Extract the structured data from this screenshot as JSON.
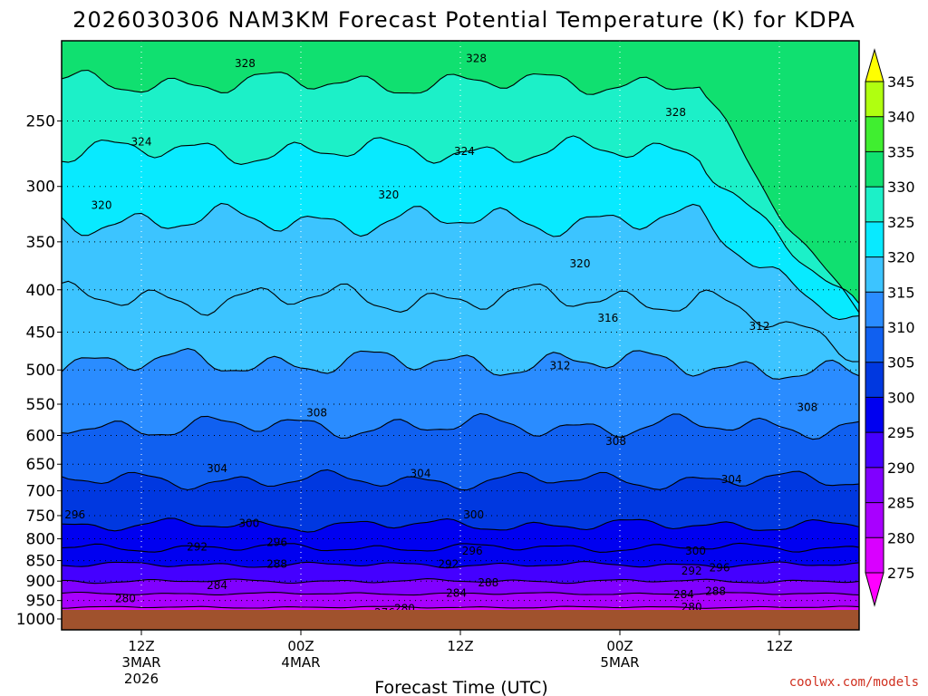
{
  "chart_data": {
    "type": "contour",
    "title": "2026030306 NAM3KM Forecast Potential Temperature (K) for KDPA",
    "xlabel": "Forecast Time (UTC)",
    "ylabel": "",
    "credit": "coolwx.com/models",
    "x_ticks": [
      {
        "hour": 6,
        "lines": [
          "12Z",
          "3MAR",
          "2026"
        ]
      },
      {
        "hour": 18,
        "lines": [
          "00Z",
          "4MAR"
        ]
      },
      {
        "hour": 30,
        "lines": [
          "12Z"
        ]
      },
      {
        "hour": 42,
        "lines": [
          "00Z",
          "5MAR"
        ]
      },
      {
        "hour": 54,
        "lines": [
          "12Z"
        ]
      }
    ],
    "x_range_hours": [
      0,
      60
    ],
    "y_ticks": [
      250,
      300,
      350,
      400,
      450,
      500,
      550,
      600,
      650,
      700,
      750,
      800,
      850,
      900,
      950,
      1000
    ],
    "y_range_hPa": [
      200,
      1000
    ],
    "y_scale": "log",
    "grid": true,
    "colorbar": {
      "ticks": [
        275,
        280,
        285,
        290,
        295,
        300,
        305,
        310,
        315,
        320,
        325,
        330,
        335,
        340,
        345
      ],
      "colors": [
        "#ff00ff",
        "#d900ff",
        "#a800ff",
        "#8000ff",
        "#4400ff",
        "#0000f0",
        "#0038e0",
        "#1060f0",
        "#2a8cff",
        "#3cc4ff",
        "#08eaff",
        "#1cf0c8",
        "#10e070",
        "#40ee30",
        "#b0ff10",
        "#ffff00"
      ]
    },
    "contour_labels": [
      {
        "text": "328",
        "hour": 13.8,
        "p": 213
      },
      {
        "text": "328",
        "hour": 31.2,
        "p": 210
      },
      {
        "text": "328",
        "hour": 46.2,
        "p": 244
      },
      {
        "text": "324",
        "hour": 6.0,
        "p": 265
      },
      {
        "text": "324",
        "hour": 30.3,
        "p": 272
      },
      {
        "text": "320",
        "hour": 3.0,
        "p": 316
      },
      {
        "text": "320",
        "hour": 24.6,
        "p": 307
      },
      {
        "text": "320",
        "hour": 39.0,
        "p": 372
      },
      {
        "text": "316",
        "hour": 41.1,
        "p": 433
      },
      {
        "text": "312",
        "hour": 52.5,
        "p": 443
      },
      {
        "text": "312",
        "hour": 37.5,
        "p": 494
      },
      {
        "text": "308",
        "hour": 19.2,
        "p": 563
      },
      {
        "text": "308",
        "hour": 41.7,
        "p": 610
      },
      {
        "text": "308",
        "hour": 56.1,
        "p": 555
      },
      {
        "text": "304",
        "hour": 11.7,
        "p": 658
      },
      {
        "text": "304",
        "hour": 27.0,
        "p": 667
      },
      {
        "text": "304",
        "hour": 50.4,
        "p": 678
      },
      {
        "text": "300",
        "hour": 14.1,
        "p": 766
      },
      {
        "text": "300",
        "hour": 31.0,
        "p": 748
      },
      {
        "text": "300",
        "hour": 47.7,
        "p": 828
      },
      {
        "text": "296",
        "hour": 1.0,
        "p": 748
      },
      {
        "text": "296",
        "hour": 16.2,
        "p": 808
      },
      {
        "text": "296",
        "hour": 30.9,
        "p": 828
      },
      {
        "text": "296",
        "hour": 49.5,
        "p": 867
      },
      {
        "text": "292",
        "hour": 10.2,
        "p": 818
      },
      {
        "text": "292",
        "hour": 29.1,
        "p": 858
      },
      {
        "text": "292",
        "hour": 47.4,
        "p": 875
      },
      {
        "text": "288",
        "hour": 16.2,
        "p": 858
      },
      {
        "text": "288",
        "hour": 32.1,
        "p": 904
      },
      {
        "text": "288",
        "hour": 49.2,
        "p": 926
      },
      {
        "text": "284",
        "hour": 11.7,
        "p": 911
      },
      {
        "text": "284",
        "hour": 29.7,
        "p": 931
      },
      {
        "text": "284",
        "hour": 46.8,
        "p": 934
      },
      {
        "text": "280",
        "hour": 4.8,
        "p": 945
      },
      {
        "text": "280",
        "hour": 25.8,
        "p": 972
      },
      {
        "text": "280",
        "hour": 47.4,
        "p": 968
      },
      {
        "text": "276",
        "hour": 24.3,
        "p": 983
      }
    ],
    "isentropes": [
      {
        "theta": 276,
        "base_p": 985,
        "wobble": 2
      },
      {
        "theta": 280,
        "base_p": 968,
        "wobble": 3
      },
      {
        "theta": 284,
        "base_p": 932,
        "wobble": 4
      },
      {
        "theta": 288,
        "base_p": 900,
        "wobble": 6
      },
      {
        "theta": 292,
        "base_p": 860,
        "wobble": 8
      },
      {
        "theta": 296,
        "base_p": 820,
        "wobble": 12
      },
      {
        "theta": 300,
        "base_p": 770,
        "wobble": 16
      },
      {
        "theta": 304,
        "base_p": 680,
        "wobble": 20
      },
      {
        "theta": 308,
        "base_p": 585,
        "wobble": 22
      },
      {
        "theta": 312,
        "base_p": 490,
        "wobble": 22
      },
      {
        "theta": 316,
        "base_p": 410,
        "wobble": 20
      },
      {
        "theta": 320,
        "base_p": 330,
        "wobble": 16
      },
      {
        "theta": 324,
        "base_p": 272,
        "wobble": 12
      },
      {
        "theta": 328,
        "base_p": 225,
        "wobble": 9
      }
    ],
    "ground_color": "#a0522d"
  }
}
